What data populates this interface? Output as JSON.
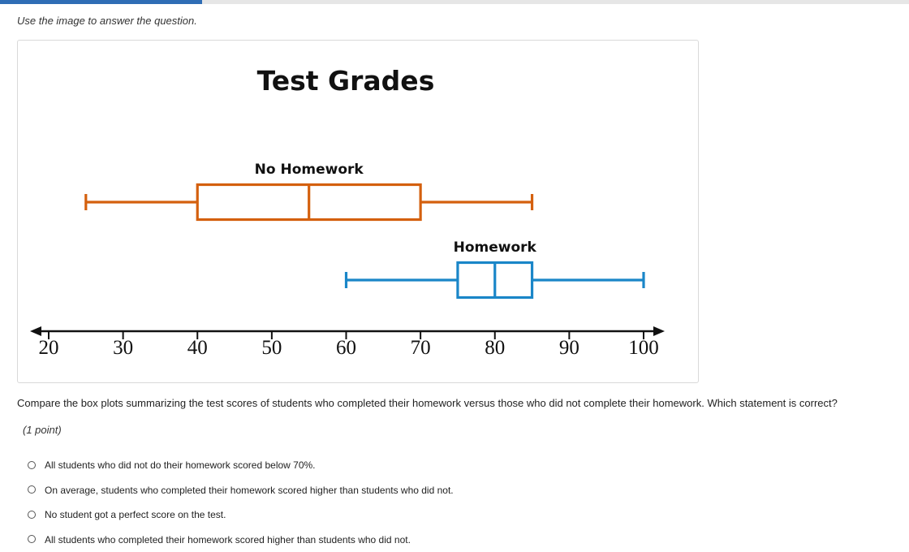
{
  "progress": {
    "fraction": 0.222
  },
  "instruction": "Use the image to answer the question.",
  "chart_data": {
    "type": "box",
    "title": "Test Grades",
    "xlabel": "",
    "ylabel": "",
    "xlim": [
      20,
      100
    ],
    "ticks": [
      20,
      30,
      40,
      50,
      60,
      70,
      80,
      90,
      100
    ],
    "tick_labels": [
      "20",
      "30",
      "40",
      "50",
      "60",
      "70",
      "80",
      "90",
      "100"
    ],
    "series": [
      {
        "name": "No Homework",
        "min": 25,
        "q1": 40,
        "median": 55,
        "q3": 70,
        "max": 85,
        "color": "#d4600e"
      },
      {
        "name": "Homework",
        "min": 60,
        "q1": 75,
        "median": 80,
        "q3": 85,
        "max": 100,
        "color": "#1a86c8"
      }
    ],
    "axis_color": "#111111"
  },
  "question": "Compare the box plots summarizing the test scores of students who completed their homework versus those who did not complete their homework. Which statement is correct?",
  "points": "(1 point)",
  "options": [
    {
      "label": "All students who did not do their homework scored below 70%."
    },
    {
      "label": "On average, students who completed their homework scored higher than students who did not."
    },
    {
      "label": "No student got a perfect score on the test."
    },
    {
      "label": "All students who completed their homework scored higher than students who did not."
    }
  ]
}
